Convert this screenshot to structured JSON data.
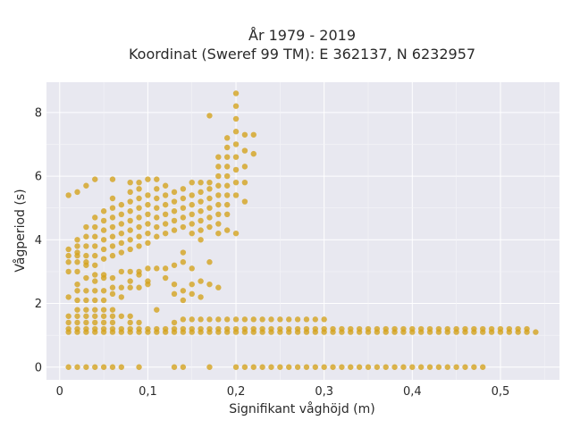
{
  "chart_data": {
    "type": "scatter",
    "title": "År 1979 - 2019",
    "subtitle": "Koordinat (Sweref 99 TM): E 362137, N 6232957",
    "xlabel": "Signifikant våghöjd (m)",
    "ylabel": "Vågperiod (s)",
    "xlim": [
      -0.015,
      0.567
    ],
    "ylim": [
      -0.4,
      8.95
    ],
    "x_ticks": [
      0,
      0.1,
      0.2,
      0.3,
      0.4,
      0.5
    ],
    "x_tick_labels": [
      "0",
      "0,1",
      "0,2",
      "0,3",
      "0,4",
      "0,5"
    ],
    "y_ticks": [
      0,
      2,
      4,
      6,
      8
    ],
    "y_tick_labels": [
      "0",
      "2",
      "4",
      "6",
      "8"
    ],
    "grid": true,
    "marker_color": "#d4a21a",
    "plot_background": "#e8e8f0",
    "points": [
      [
        0.01,
        0
      ],
      [
        0.02,
        0
      ],
      [
        0.03,
        0
      ],
      [
        0.04,
        0
      ],
      [
        0.05,
        0
      ],
      [
        0.06,
        0
      ],
      [
        0.07,
        0
      ],
      [
        0.09,
        0
      ],
      [
        0.13,
        0
      ],
      [
        0.14,
        0
      ],
      [
        0.17,
        0
      ],
      [
        0.2,
        0
      ],
      [
        0.21,
        0
      ],
      [
        0.22,
        0
      ],
      [
        0.23,
        0
      ],
      [
        0.24,
        0
      ],
      [
        0.25,
        0
      ],
      [
        0.26,
        0
      ],
      [
        0.27,
        0
      ],
      [
        0.28,
        0
      ],
      [
        0.29,
        0
      ],
      [
        0.3,
        0
      ],
      [
        0.31,
        0
      ],
      [
        0.32,
        0
      ],
      [
        0.33,
        0
      ],
      [
        0.34,
        0
      ],
      [
        0.35,
        0
      ],
      [
        0.36,
        0
      ],
      [
        0.37,
        0
      ],
      [
        0.38,
        0
      ],
      [
        0.39,
        0
      ],
      [
        0.4,
        0
      ],
      [
        0.41,
        0
      ],
      [
        0.42,
        0
      ],
      [
        0.43,
        0
      ],
      [
        0.44,
        0
      ],
      [
        0.45,
        0
      ],
      [
        0.46,
        0
      ],
      [
        0.47,
        0
      ],
      [
        0.48,
        0
      ],
      [
        0.01,
        1.1
      ],
      [
        0.02,
        1.1
      ],
      [
        0.03,
        1.1
      ],
      [
        0.04,
        1.1
      ],
      [
        0.05,
        1.1
      ],
      [
        0.06,
        1.1
      ],
      [
        0.07,
        1.1
      ],
      [
        0.08,
        1.1
      ],
      [
        0.09,
        1.1
      ],
      [
        0.1,
        1.1
      ],
      [
        0.11,
        1.1
      ],
      [
        0.12,
        1.1
      ],
      [
        0.13,
        1.1
      ],
      [
        0.14,
        1.1
      ],
      [
        0.15,
        1.1
      ],
      [
        0.16,
        1.1
      ],
      [
        0.17,
        1.1
      ],
      [
        0.18,
        1.1
      ],
      [
        0.19,
        1.1
      ],
      [
        0.2,
        1.1
      ],
      [
        0.21,
        1.1
      ],
      [
        0.22,
        1.1
      ],
      [
        0.23,
        1.1
      ],
      [
        0.24,
        1.1
      ],
      [
        0.25,
        1.1
      ],
      [
        0.26,
        1.1
      ],
      [
        0.27,
        1.1
      ],
      [
        0.28,
        1.1
      ],
      [
        0.29,
        1.1
      ],
      [
        0.3,
        1.1
      ],
      [
        0.31,
        1.1
      ],
      [
        0.32,
        1.1
      ],
      [
        0.33,
        1.1
      ],
      [
        0.34,
        1.1
      ],
      [
        0.35,
        1.1
      ],
      [
        0.36,
        1.1
      ],
      [
        0.37,
        1.1
      ],
      [
        0.38,
        1.1
      ],
      [
        0.39,
        1.1
      ],
      [
        0.4,
        1.1
      ],
      [
        0.41,
        1.1
      ],
      [
        0.42,
        1.1
      ],
      [
        0.43,
        1.1
      ],
      [
        0.44,
        1.1
      ],
      [
        0.45,
        1.1
      ],
      [
        0.46,
        1.1
      ],
      [
        0.47,
        1.1
      ],
      [
        0.48,
        1.1
      ],
      [
        0.49,
        1.1
      ],
      [
        0.5,
        1.1
      ],
      [
        0.51,
        1.1
      ],
      [
        0.52,
        1.1
      ],
      [
        0.53,
        1.1
      ],
      [
        0.54,
        1.1
      ],
      [
        0.01,
        1.2
      ],
      [
        0.02,
        1.2
      ],
      [
        0.03,
        1.2
      ],
      [
        0.04,
        1.2
      ],
      [
        0.05,
        1.2
      ],
      [
        0.06,
        1.2
      ],
      [
        0.07,
        1.2
      ],
      [
        0.08,
        1.2
      ],
      [
        0.09,
        1.2
      ],
      [
        0.1,
        1.2
      ],
      [
        0.11,
        1.2
      ],
      [
        0.12,
        1.2
      ],
      [
        0.13,
        1.2
      ],
      [
        0.14,
        1.2
      ],
      [
        0.15,
        1.2
      ],
      [
        0.16,
        1.2
      ],
      [
        0.17,
        1.2
      ],
      [
        0.18,
        1.2
      ],
      [
        0.19,
        1.2
      ],
      [
        0.2,
        1.2
      ],
      [
        0.21,
        1.2
      ],
      [
        0.22,
        1.2
      ],
      [
        0.23,
        1.2
      ],
      [
        0.24,
        1.2
      ],
      [
        0.25,
        1.2
      ],
      [
        0.26,
        1.2
      ],
      [
        0.27,
        1.2
      ],
      [
        0.28,
        1.2
      ],
      [
        0.29,
        1.2
      ],
      [
        0.3,
        1.2
      ],
      [
        0.31,
        1.2
      ],
      [
        0.32,
        1.2
      ],
      [
        0.33,
        1.2
      ],
      [
        0.34,
        1.2
      ],
      [
        0.35,
        1.2
      ],
      [
        0.36,
        1.2
      ],
      [
        0.37,
        1.2
      ],
      [
        0.38,
        1.2
      ],
      [
        0.39,
        1.2
      ],
      [
        0.4,
        1.2
      ],
      [
        0.41,
        1.2
      ],
      [
        0.42,
        1.2
      ],
      [
        0.43,
        1.2
      ],
      [
        0.44,
        1.2
      ],
      [
        0.45,
        1.2
      ],
      [
        0.46,
        1.2
      ],
      [
        0.47,
        1.2
      ],
      [
        0.48,
        1.2
      ],
      [
        0.49,
        1.2
      ],
      [
        0.5,
        1.2
      ],
      [
        0.51,
        1.2
      ],
      [
        0.52,
        1.2
      ],
      [
        0.53,
        1.2
      ],
      [
        0.01,
        1.4
      ],
      [
        0.02,
        1.4
      ],
      [
        0.03,
        1.4
      ],
      [
        0.04,
        1.4
      ],
      [
        0.05,
        1.4
      ],
      [
        0.06,
        1.4
      ],
      [
        0.08,
        1.4
      ],
      [
        0.09,
        1.4
      ],
      [
        0.13,
        1.4
      ],
      [
        0.14,
        1.5
      ],
      [
        0.15,
        1.5
      ],
      [
        0.16,
        1.5
      ],
      [
        0.17,
        1.5
      ],
      [
        0.18,
        1.5
      ],
      [
        0.19,
        1.5
      ],
      [
        0.2,
        1.5
      ],
      [
        0.21,
        1.5
      ],
      [
        0.22,
        1.5
      ],
      [
        0.23,
        1.5
      ],
      [
        0.24,
        1.5
      ],
      [
        0.25,
        1.5
      ],
      [
        0.26,
        1.5
      ],
      [
        0.27,
        1.5
      ],
      [
        0.28,
        1.5
      ],
      [
        0.29,
        1.5
      ],
      [
        0.3,
        1.5
      ],
      [
        0.01,
        1.6
      ],
      [
        0.02,
        1.6
      ],
      [
        0.03,
        1.6
      ],
      [
        0.04,
        1.6
      ],
      [
        0.05,
        1.6
      ],
      [
        0.06,
        1.6
      ],
      [
        0.07,
        1.6
      ],
      [
        0.08,
        1.6
      ],
      [
        0.02,
        1.8
      ],
      [
        0.03,
        1.8
      ],
      [
        0.04,
        1.8
      ],
      [
        0.05,
        1.8
      ],
      [
        0.06,
        1.8
      ],
      [
        0.11,
        1.8
      ],
      [
        0.01,
        2.2
      ],
      [
        0.02,
        2.1
      ],
      [
        0.02,
        2.4
      ],
      [
        0.03,
        2.1
      ],
      [
        0.03,
        2.4
      ],
      [
        0.04,
        2.1
      ],
      [
        0.04,
        2.4
      ],
      [
        0.05,
        2.1
      ],
      [
        0.05,
        2.4
      ],
      [
        0.06,
        2.3
      ],
      [
        0.07,
        2.2
      ],
      [
        0.07,
        2.5
      ],
      [
        0.08,
        2.5
      ],
      [
        0.09,
        2.5
      ],
      [
        0.1,
        2.6
      ],
      [
        0.13,
        2.6
      ],
      [
        0.14,
        2.4
      ],
      [
        0.15,
        2.6
      ],
      [
        0.16,
        2.7
      ],
      [
        0.17,
        2.6
      ],
      [
        0.18,
        2.5
      ],
      [
        0.02,
        2.6
      ],
      [
        0.03,
        2.8
      ],
      [
        0.04,
        2.7
      ],
      [
        0.05,
        2.9
      ],
      [
        0.06,
        2.8
      ],
      [
        0.07,
        3
      ],
      [
        0.08,
        3
      ],
      [
        0.09,
        3
      ],
      [
        0.1,
        3.1
      ],
      [
        0.11,
        3.1
      ],
      [
        0.12,
        3.1
      ],
      [
        0.13,
        3.2
      ],
      [
        0.14,
        3.3
      ],
      [
        0.15,
        3.1
      ],
      [
        0.17,
        3.3
      ],
      [
        0.01,
        3
      ],
      [
        0.01,
        3.3
      ],
      [
        0.01,
        3.5
      ],
      [
        0.01,
        3.7
      ],
      [
        0.02,
        3
      ],
      [
        0.02,
        3.3
      ],
      [
        0.02,
        3.5
      ],
      [
        0.02,
        3.8
      ],
      [
        0.02,
        4
      ],
      [
        0.03,
        3.2
      ],
      [
        0.03,
        3.5
      ],
      [
        0.03,
        3.8
      ],
      [
        0.03,
        4.1
      ],
      [
        0.03,
        4.4
      ],
      [
        0.04,
        3.2
      ],
      [
        0.04,
        3.5
      ],
      [
        0.04,
        3.8
      ],
      [
        0.04,
        4.1
      ],
      [
        0.04,
        4.4
      ],
      [
        0.04,
        4.7
      ],
      [
        0.05,
        3.4
      ],
      [
        0.05,
        3.7
      ],
      [
        0.05,
        4
      ],
      [
        0.05,
        4.3
      ],
      [
        0.05,
        4.6
      ],
      [
        0.05,
        4.9
      ],
      [
        0.06,
        3.5
      ],
      [
        0.06,
        3.8
      ],
      [
        0.06,
        4.1
      ],
      [
        0.06,
        4.4
      ],
      [
        0.06,
        4.7
      ],
      [
        0.06,
        5
      ],
      [
        0.06,
        5.3
      ],
      [
        0.07,
        3.6
      ],
      [
        0.07,
        3.9
      ],
      [
        0.07,
        4.2
      ],
      [
        0.07,
        4.5
      ],
      [
        0.07,
        4.8
      ],
      [
        0.07,
        5.1
      ],
      [
        0.08,
        3.7
      ],
      [
        0.08,
        4
      ],
      [
        0.08,
        4.3
      ],
      [
        0.08,
        4.6
      ],
      [
        0.08,
        4.9
      ],
      [
        0.08,
        5.2
      ],
      [
        0.08,
        5.5
      ],
      [
        0.09,
        3.8
      ],
      [
        0.09,
        4.1
      ],
      [
        0.09,
        4.4
      ],
      [
        0.09,
        4.7
      ],
      [
        0.09,
        5
      ],
      [
        0.09,
        5.3
      ],
      [
        0.09,
        5.6
      ],
      [
        0.1,
        3.9
      ],
      [
        0.1,
        4.2
      ],
      [
        0.1,
        4.5
      ],
      [
        0.1,
        4.8
      ],
      [
        0.1,
        5.1
      ],
      [
        0.1,
        5.4
      ],
      [
        0.11,
        4.1
      ],
      [
        0.11,
        4.4
      ],
      [
        0.11,
        4.7
      ],
      [
        0.11,
        5
      ],
      [
        0.11,
        5.3
      ],
      [
        0.11,
        5.6
      ],
      [
        0.12,
        4.2
      ],
      [
        0.12,
        4.5
      ],
      [
        0.12,
        4.8
      ],
      [
        0.12,
        5.1
      ],
      [
        0.12,
        5.4
      ],
      [
        0.13,
        4.3
      ],
      [
        0.13,
        4.6
      ],
      [
        0.13,
        4.9
      ],
      [
        0.13,
        5.2
      ],
      [
        0.14,
        4.4
      ],
      [
        0.14,
        4.7
      ],
      [
        0.14,
        5
      ],
      [
        0.14,
        5.3
      ],
      [
        0.15,
        4.2
      ],
      [
        0.15,
        4.5
      ],
      [
        0.15,
        4.8
      ],
      [
        0.15,
        5.1
      ],
      [
        0.15,
        5.4
      ],
      [
        0.16,
        4.3
      ],
      [
        0.16,
        4.6
      ],
      [
        0.16,
        4.9
      ],
      [
        0.16,
        5.2
      ],
      [
        0.16,
        5.5
      ],
      [
        0.17,
        4.4
      ],
      [
        0.17,
        4.7
      ],
      [
        0.17,
        5
      ],
      [
        0.17,
        5.3
      ],
      [
        0.17,
        5.6
      ],
      [
        0.18,
        4.5
      ],
      [
        0.18,
        4.8
      ],
      [
        0.18,
        5.1
      ],
      [
        0.18,
        5.4
      ],
      [
        0.18,
        5.7
      ],
      [
        0.18,
        6
      ],
      [
        0.18,
        6.3
      ],
      [
        0.18,
        6.6
      ],
      [
        0.19,
        4.8
      ],
      [
        0.19,
        5.1
      ],
      [
        0.19,
        5.4
      ],
      [
        0.19,
        5.7
      ],
      [
        0.19,
        6
      ],
      [
        0.19,
        6.3
      ],
      [
        0.19,
        6.6
      ],
      [
        0.19,
        6.9
      ],
      [
        0.19,
        7.2
      ],
      [
        0.2,
        5.4
      ],
      [
        0.2,
        5.8
      ],
      [
        0.2,
        6.2
      ],
      [
        0.2,
        6.6
      ],
      [
        0.2,
        7
      ],
      [
        0.2,
        7.4
      ],
      [
        0.2,
        7.8
      ],
      [
        0.2,
        8.2
      ],
      [
        0.21,
        5.8
      ],
      [
        0.21,
        6.3
      ],
      [
        0.21,
        6.8
      ],
      [
        0.21,
        7.3
      ],
      [
        0.22,
        6.7
      ],
      [
        0.22,
        7.3
      ],
      [
        0.01,
        5.4
      ],
      [
        0.02,
        5.5
      ],
      [
        0.03,
        5.7
      ],
      [
        0.04,
        5.9
      ],
      [
        0.06,
        5.9
      ],
      [
        0.08,
        5.8
      ],
      [
        0.09,
        5.8
      ],
      [
        0.1,
        5.9
      ],
      [
        0.11,
        5.9
      ],
      [
        0.12,
        5.7
      ],
      [
        0.13,
        5.5
      ],
      [
        0.14,
        5.6
      ],
      [
        0.15,
        5.8
      ],
      [
        0.16,
        5.8
      ],
      [
        0.17,
        5.8
      ],
      [
        0.17,
        7.9
      ],
      [
        0.2,
        8.6
      ],
      [
        0.21,
        5.2
      ],
      [
        0.02,
        3.6
      ],
      [
        0.03,
        3.3
      ],
      [
        0.04,
        2.9
      ],
      [
        0.05,
        2.8
      ],
      [
        0.06,
        2.5
      ],
      [
        0.08,
        2.7
      ],
      [
        0.09,
        2.9
      ],
      [
        0.1,
        2.7
      ],
      [
        0.12,
        2.8
      ],
      [
        0.13,
        2.3
      ],
      [
        0.14,
        2.1
      ],
      [
        0.15,
        2.3
      ],
      [
        0.16,
        2.2
      ],
      [
        0.14,
        3.6
      ],
      [
        0.16,
        4
      ],
      [
        0.18,
        4.2
      ],
      [
        0.19,
        4.3
      ],
      [
        0.2,
        4.2
      ]
    ]
  }
}
